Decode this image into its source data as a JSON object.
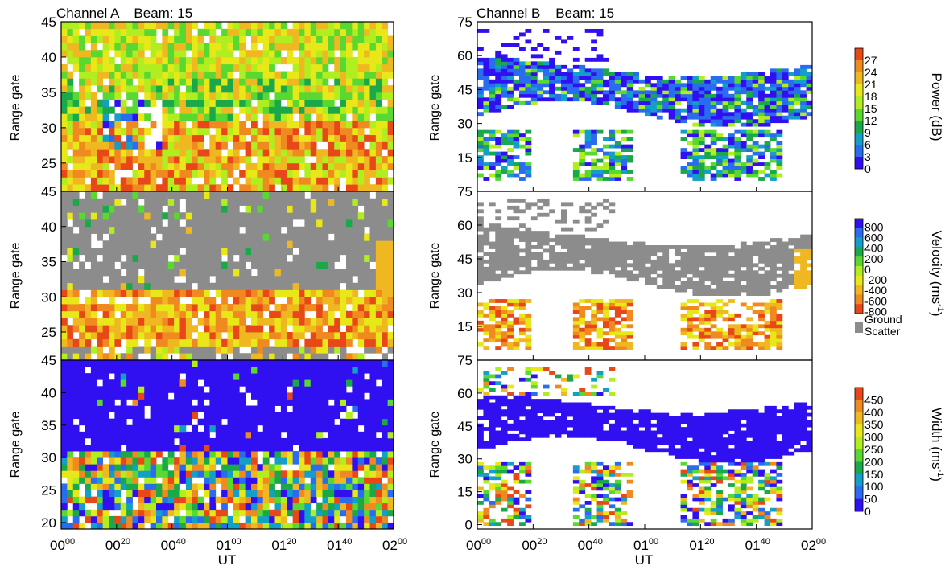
{
  "figure": {
    "x_axis_label": "UT",
    "x_tick_labels": [
      {
        "main": "00",
        "sup": "00"
      },
      {
        "main": "00",
        "sup": "20"
      },
      {
        "main": "00",
        "sup": "40"
      },
      {
        "main": "01",
        "sup": "00"
      },
      {
        "main": "01",
        "sup": "20"
      },
      {
        "main": "01",
        "sup": "40"
      },
      {
        "main": "02",
        "sup": "00"
      }
    ],
    "y_axis_label": "Range gate"
  },
  "chart_data": [
    {
      "type": "heatmap",
      "title": "Channel A    Beam: 15",
      "parameter": "Power (dB)",
      "x_range_ut": [
        "00:00",
        "02:00"
      ],
      "y_range_gate": [
        21,
        45
      ],
      "y_ticks": [
        25,
        30,
        35,
        40,
        45
      ],
      "seed": 11,
      "profile": "powerA"
    },
    {
      "type": "heatmap",
      "title": "Channel B    Beam: 15",
      "parameter": "Power (dB)",
      "x_range_ut": [
        "00:00",
        "02:00"
      ],
      "y_range_gate": [
        0,
        75
      ],
      "y_ticks": [
        15,
        30,
        45,
        60,
        75
      ],
      "seed": 23,
      "profile": "powerB"
    },
    {
      "type": "heatmap",
      "title": "",
      "parameter": "Velocity (ms-1)",
      "x_range_ut": [
        "00:00",
        "02:00"
      ],
      "y_range_gate": [
        21,
        45
      ],
      "y_ticks": [
        25,
        30,
        35,
        40,
        45
      ],
      "seed": 37,
      "profile": "velA"
    },
    {
      "type": "heatmap",
      "title": "",
      "parameter": "Velocity (ms-1)",
      "x_range_ut": [
        "00:00",
        "02:00"
      ],
      "y_range_gate": [
        0,
        75
      ],
      "y_ticks": [
        15,
        30,
        45,
        60,
        75
      ],
      "seed": 41,
      "profile": "velB"
    },
    {
      "type": "heatmap",
      "title": "",
      "parameter": "Width (ms-1)",
      "x_range_ut": [
        "00:00",
        "02:00"
      ],
      "y_range_gate": [
        19,
        45
      ],
      "y_ticks": [
        20,
        25,
        30,
        35,
        40,
        45
      ],
      "seed": 53,
      "profile": "widthA"
    },
    {
      "type": "heatmap",
      "title": "",
      "parameter": "Width (ms-1)",
      "x_range_ut": [
        "00:00",
        "02:00"
      ],
      "y_range_gate": [
        -2,
        75
      ],
      "y_ticks": [
        0,
        15,
        30,
        45,
        60,
        75
      ],
      "seed": 67,
      "profile": "widthB"
    }
  ],
  "colorbars": [
    {
      "label": "Power (dB)",
      "tick_labels": [
        "0",
        "3",
        "6",
        "9",
        "12",
        "15",
        "18",
        "21",
        "24",
        "27"
      ],
      "colors": [
        "#3010f0",
        "#2a6cf0",
        "#12a0c8",
        "#1aa84a",
        "#58d830",
        "#b0ee20",
        "#e8e818",
        "#f0b820",
        "#f08a20",
        "#e84818"
      ]
    },
    {
      "label": "Velocity (ms-1)",
      "tick_labels": [
        "800",
        "600",
        "400",
        "200",
        "0",
        "-200",
        "-400",
        "-600",
        "-800"
      ],
      "colors": [
        "#3010f0",
        "#2a6cf0",
        "#12a0c8",
        "#1aa84a",
        "#58d830",
        "#b0ee20",
        "#e8e818",
        "#f0b820",
        "#f08a20",
        "#e84818"
      ],
      "ground_scatter_label": [
        "Ground",
        "Scatter"
      ],
      "ground_scatter_color": "#8c8c8c"
    },
    {
      "label": "Width (ms-1)",
      "tick_labels": [
        "0",
        "50",
        "100",
        "150",
        "200",
        "250",
        "300",
        "350",
        "400",
        "450"
      ],
      "colors": [
        "#3010f0",
        "#2a6cf0",
        "#12a0c8",
        "#1aa84a",
        "#58d830",
        "#b0ee20",
        "#e8e818",
        "#f0b820",
        "#f08a20",
        "#e84818"
      ]
    }
  ]
}
